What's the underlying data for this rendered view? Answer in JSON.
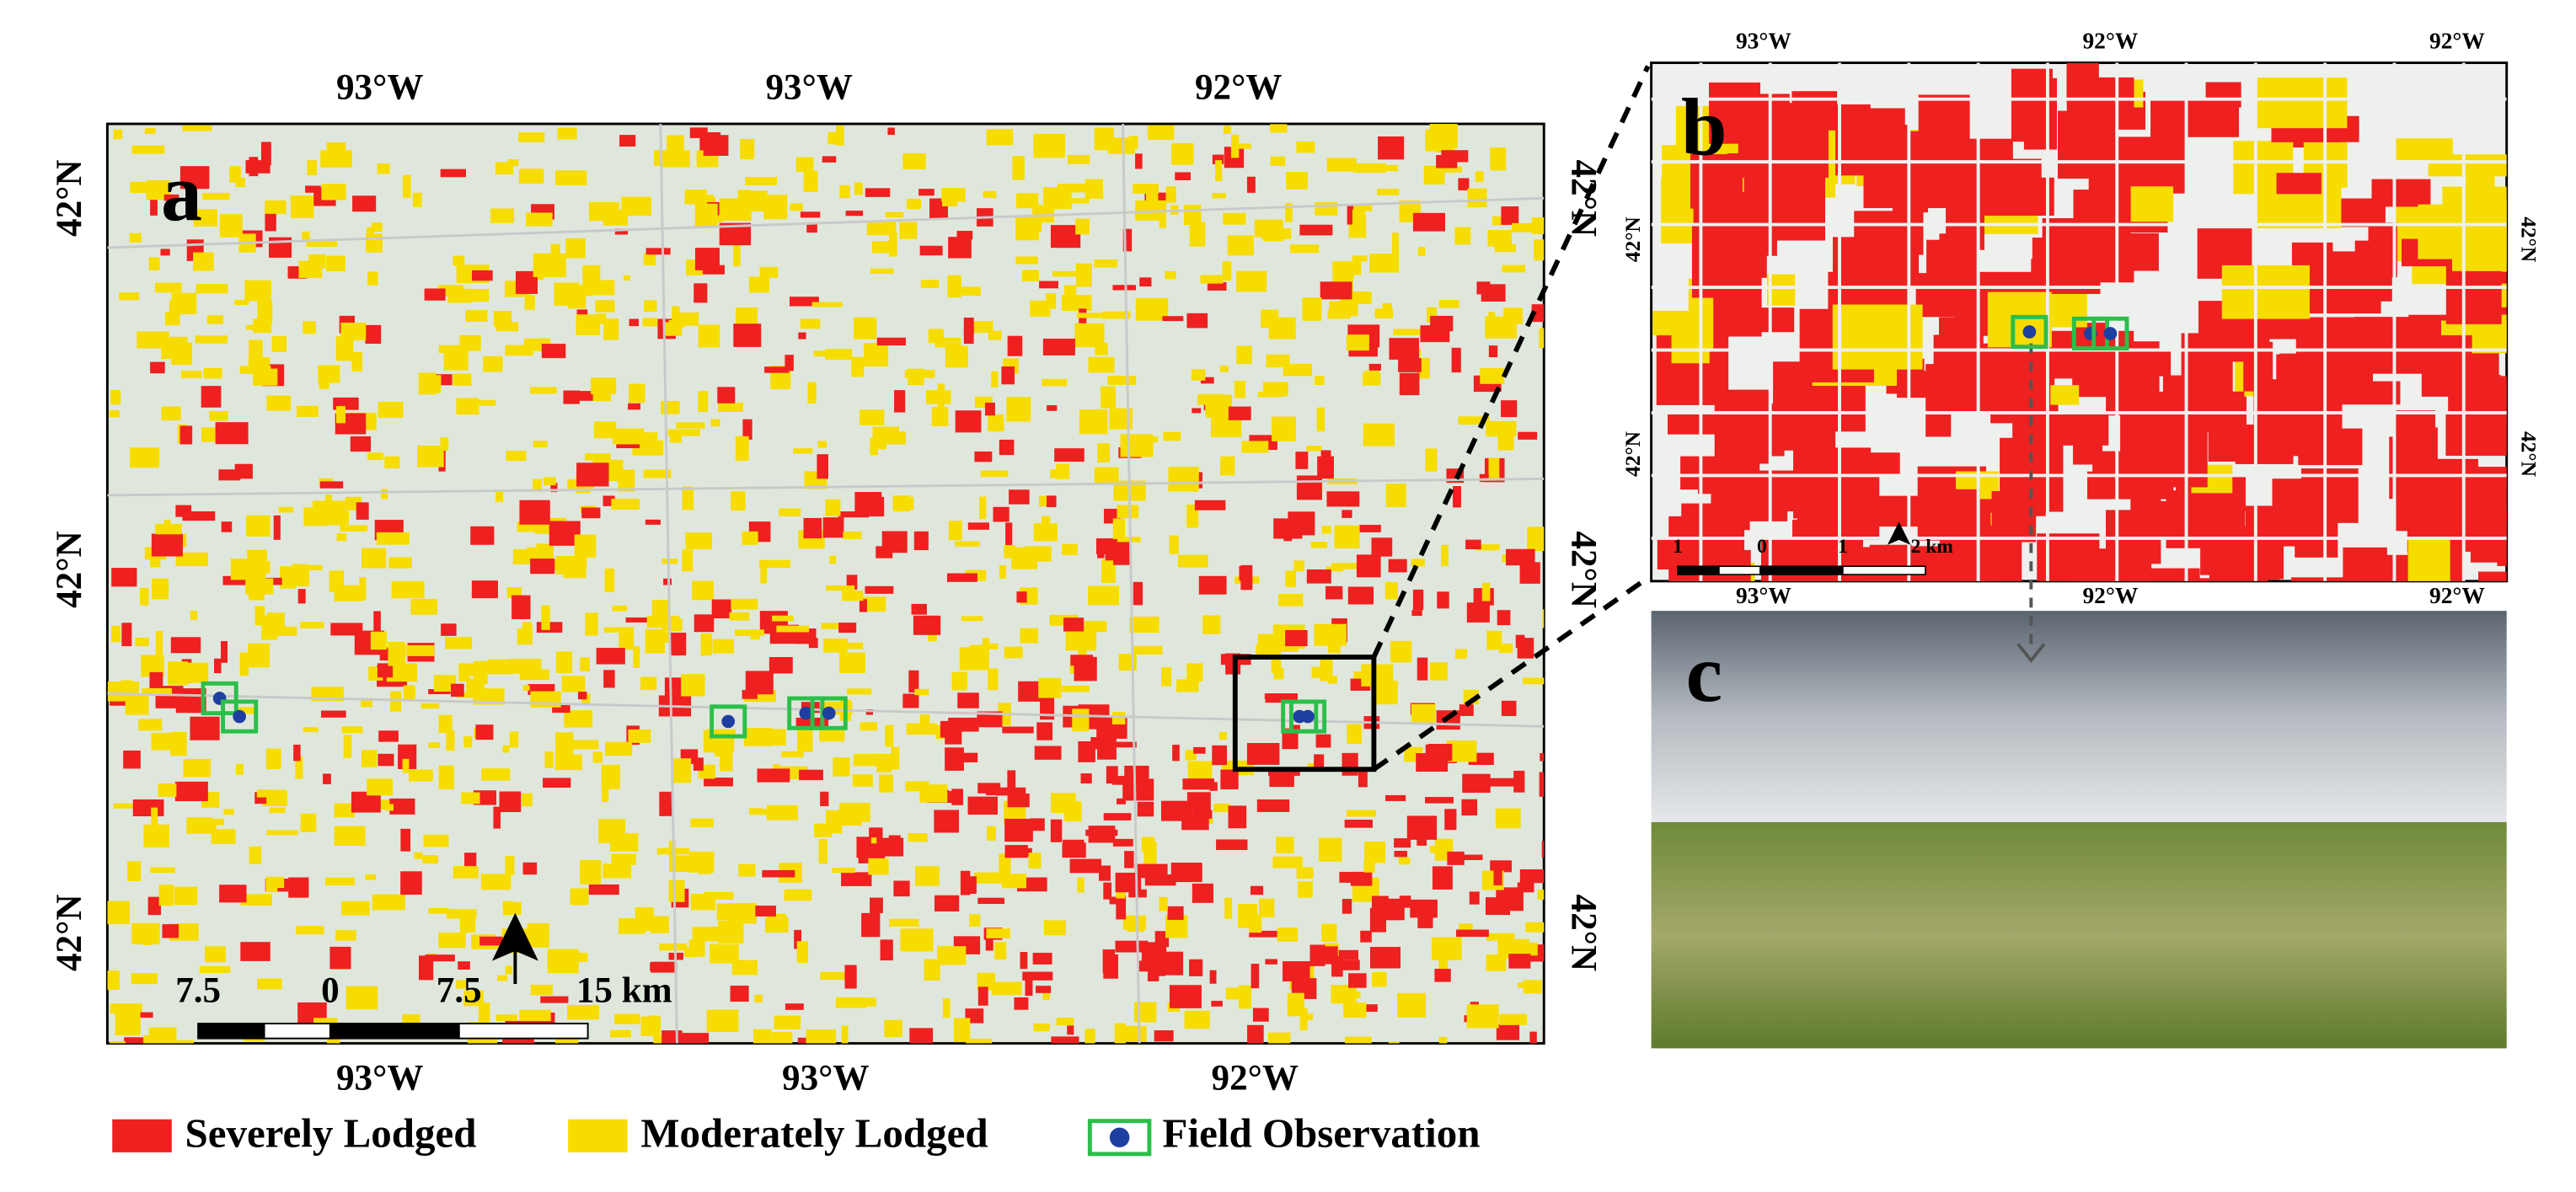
{
  "panels": {
    "a": {
      "label": "a",
      "top_ticks": [
        "93°W",
        "93°W",
        "92°W"
      ],
      "bottom_ticks": [
        "93°W",
        "93°W",
        "92°W"
      ],
      "left_ticks": [
        "42°N",
        "42°N",
        "42°N"
      ],
      "right_ticks": [
        "42°N",
        "42°N",
        "42°N"
      ],
      "scale_labels": [
        "7.5",
        "0",
        "7.5",
        "15 km"
      ]
    },
    "b": {
      "label": "b",
      "top_ticks": [
        "93°W",
        "92°W",
        "92°W"
      ],
      "bottom_ticks": [
        "93°W",
        "92°W",
        "92°W"
      ],
      "left_ticks": [
        "42°N",
        "42°N"
      ],
      "right_ticks": [
        "42°N",
        "42°N"
      ],
      "scale_labels": [
        "1",
        "0",
        "1",
        "2 km"
      ]
    },
    "c": {
      "label": "c"
    }
  },
  "legend": [
    {
      "label": "Severely Lodged"
    },
    {
      "label": "Moderately Lodged"
    },
    {
      "label": "Field Observation"
    }
  ]
}
